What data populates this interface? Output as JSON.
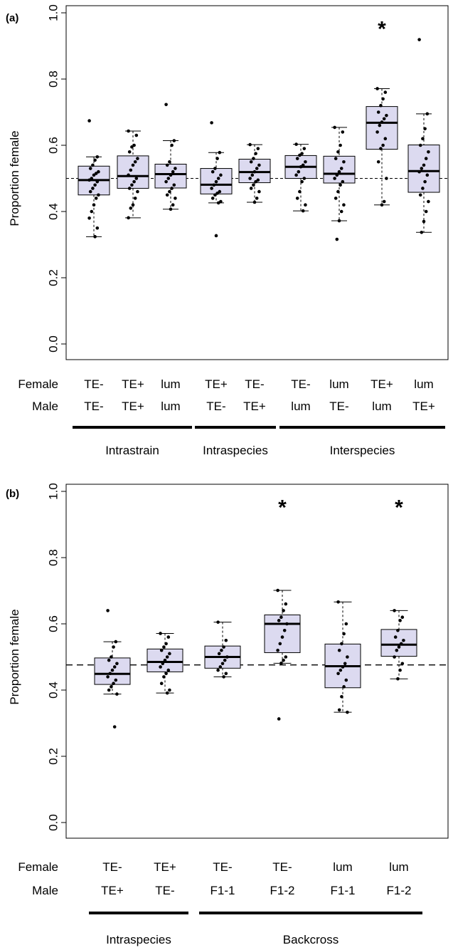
{
  "chart_data": [
    {
      "type": "box",
      "panel_label": "(a)",
      "ylabel": "Proportion female",
      "ylim": [
        0,
        1
      ],
      "yticks": [
        "0.0",
        "0.2",
        "0.4",
        "0.6",
        "0.8",
        "1.0"
      ],
      "reference_line": 0.5,
      "row_labels": [
        "Female",
        "Male"
      ],
      "categories": [
        {
          "female": "TE-",
          "male": "TE-",
          "q1": 0.45,
          "median": 0.495,
          "q3": 0.537,
          "lo": 0.324,
          "hi": 0.565,
          "points": [
            0.674,
            0.565,
            0.555,
            0.54,
            0.53,
            0.52,
            0.515,
            0.51,
            0.5,
            0.495,
            0.49,
            0.48,
            0.47,
            0.46,
            0.45,
            0.44,
            0.42,
            0.4,
            0.38,
            0.35,
            0.324
          ]
        },
        {
          "female": "TE+",
          "male": "TE+",
          "q1": 0.47,
          "median": 0.507,
          "q3": 0.568,
          "lo": 0.381,
          "hi": 0.643,
          "points": [
            0.643,
            0.63,
            0.6,
            0.595,
            0.58,
            0.56,
            0.55,
            0.54,
            0.525,
            0.51,
            0.5,
            0.49,
            0.48,
            0.47,
            0.46,
            0.44,
            0.42,
            0.41,
            0.381
          ]
        },
        {
          "female": "lum",
          "male": "lum",
          "q1": 0.471,
          "median": 0.513,
          "q3": 0.543,
          "lo": 0.407,
          "hi": 0.614,
          "points": [
            0.723,
            0.614,
            0.6,
            0.55,
            0.54,
            0.53,
            0.52,
            0.51,
            0.5,
            0.49,
            0.48,
            0.47,
            0.46,
            0.45,
            0.44,
            0.42,
            0.407
          ]
        },
        {
          "female": "TE+",
          "male": "TE-",
          "q1": 0.453,
          "median": 0.481,
          "q3": 0.53,
          "lo": 0.426,
          "hi": 0.578,
          "points": [
            0.668,
            0.578,
            0.56,
            0.53,
            0.52,
            0.51,
            0.5,
            0.49,
            0.48,
            0.47,
            0.46,
            0.455,
            0.45,
            0.44,
            0.43,
            0.426,
            0.327
          ]
        },
        {
          "female": "TE-",
          "male": "TE+",
          "q1": 0.487,
          "median": 0.519,
          "q3": 0.558,
          "lo": 0.428,
          "hi": 0.602,
          "points": [
            0.602,
            0.59,
            0.575,
            0.56,
            0.55,
            0.54,
            0.53,
            0.52,
            0.51,
            0.5,
            0.495,
            0.49,
            0.48,
            0.47,
            0.46,
            0.44,
            0.428
          ]
        },
        {
          "female": "TE-",
          "male": "lum",
          "q1": 0.5,
          "median": 0.535,
          "q3": 0.569,
          "lo": 0.402,
          "hi": 0.603,
          "points": [
            0.603,
            0.59,
            0.575,
            0.57,
            0.56,
            0.55,
            0.54,
            0.535,
            0.52,
            0.51,
            0.5,
            0.49,
            0.46,
            0.44,
            0.42,
            0.402
          ]
        },
        {
          "female": "lum",
          "male": "TE-",
          "q1": 0.486,
          "median": 0.514,
          "q3": 0.567,
          "lo": 0.372,
          "hi": 0.654,
          "points": [
            0.654,
            0.64,
            0.6,
            0.58,
            0.56,
            0.55,
            0.53,
            0.52,
            0.51,
            0.5,
            0.49,
            0.48,
            0.46,
            0.44,
            0.42,
            0.4,
            0.372,
            0.316
          ]
        },
        {
          "female": "TE+",
          "male": "lum",
          "q1": 0.588,
          "median": 0.668,
          "q3": 0.717,
          "lo": 0.42,
          "hi": 0.771,
          "points": [
            0.771,
            0.76,
            0.74,
            0.72,
            0.7,
            0.69,
            0.68,
            0.67,
            0.66,
            0.64,
            0.62,
            0.6,
            0.59,
            0.55,
            0.5,
            0.43,
            0.42
          ]
        },
        {
          "female": "lum",
          "male": "TE+",
          "q1": 0.458,
          "median": 0.522,
          "q3": 0.601,
          "lo": 0.337,
          "hi": 0.695,
          "points": [
            0.919,
            0.695,
            0.65,
            0.62,
            0.6,
            0.58,
            0.56,
            0.54,
            0.53,
            0.52,
            0.51,
            0.49,
            0.47,
            0.45,
            0.43,
            0.4,
            0.37,
            0.337
          ]
        }
      ],
      "significance": [
        {
          "category_index": 7,
          "label": "*"
        }
      ],
      "groups": [
        {
          "label": "Intrastrain",
          "from": 0,
          "to": 2
        },
        {
          "label": "Intraspecies",
          "from": 3,
          "to": 4
        },
        {
          "label": "Interspecies",
          "from": 5,
          "to": 8
        }
      ]
    },
    {
      "type": "box",
      "panel_label": "(b)",
      "ylabel": "Proportion female",
      "ylim": [
        0,
        1
      ],
      "yticks": [
        "0.0",
        "0.2",
        "0.4",
        "0.6",
        "0.8",
        "1.0"
      ],
      "reference_line": 0.476,
      "row_labels": [
        "Female",
        "Male"
      ],
      "categories": [
        {
          "female": "TE-",
          "male": "TE+",
          "q1": 0.417,
          "median": 0.449,
          "q3": 0.497,
          "lo": 0.388,
          "hi": 0.546,
          "points": [
            0.64,
            0.546,
            0.53,
            0.5,
            0.49,
            0.48,
            0.47,
            0.46,
            0.45,
            0.44,
            0.43,
            0.42,
            0.41,
            0.4,
            0.388,
            0.289
          ]
        },
        {
          "female": "TE+",
          "male": "TE-",
          "q1": 0.455,
          "median": 0.485,
          "q3": 0.524,
          "lo": 0.391,
          "hi": 0.571,
          "points": [
            0.571,
            0.56,
            0.54,
            0.53,
            0.52,
            0.51,
            0.5,
            0.49,
            0.48,
            0.47,
            0.46,
            0.45,
            0.44,
            0.42,
            0.4,
            0.391
          ]
        },
        {
          "female": "TE-",
          "male": "F1-1",
          "q1": 0.466,
          "median": 0.5,
          "q3": 0.533,
          "lo": 0.44,
          "hi": 0.605,
          "points": [
            0.605,
            0.55,
            0.53,
            0.52,
            0.51,
            0.5,
            0.49,
            0.48,
            0.47,
            0.46,
            0.45,
            0.44
          ]
        },
        {
          "female": "TE-",
          "male": "F1-2",
          "q1": 0.513,
          "median": 0.6,
          "q3": 0.627,
          "lo": 0.481,
          "hi": 0.701,
          "points": [
            0.701,
            0.66,
            0.64,
            0.62,
            0.61,
            0.6,
            0.58,
            0.56,
            0.54,
            0.52,
            0.5,
            0.49,
            0.481,
            0.313
          ]
        },
        {
          "female": "lum",
          "male": "F1-1",
          "q1": 0.407,
          "median": 0.472,
          "q3": 0.539,
          "lo": 0.333,
          "hi": 0.666,
          "points": [
            0.666,
            0.6,
            0.57,
            0.54,
            0.52,
            0.5,
            0.48,
            0.47,
            0.46,
            0.45,
            0.43,
            0.41,
            0.38,
            0.34,
            0.333
          ]
        },
        {
          "female": "lum",
          "male": "F1-2",
          "q1": 0.502,
          "median": 0.537,
          "q3": 0.583,
          "lo": 0.434,
          "hi": 0.64,
          "points": [
            0.64,
            0.62,
            0.61,
            0.58,
            0.56,
            0.55,
            0.54,
            0.53,
            0.52,
            0.5,
            0.48,
            0.46,
            0.434
          ]
        }
      ],
      "significance": [
        {
          "category_index": 3,
          "label": "*"
        },
        {
          "category_index": 5,
          "label": "*"
        }
      ],
      "groups": [
        {
          "label": "Intraspecies",
          "from": 0,
          "to": 1
        },
        {
          "label": "Backcross",
          "from": 2,
          "to": 5
        }
      ]
    }
  ],
  "colors": {
    "box_fill": "#dcdaf0",
    "stroke": "#000000"
  }
}
